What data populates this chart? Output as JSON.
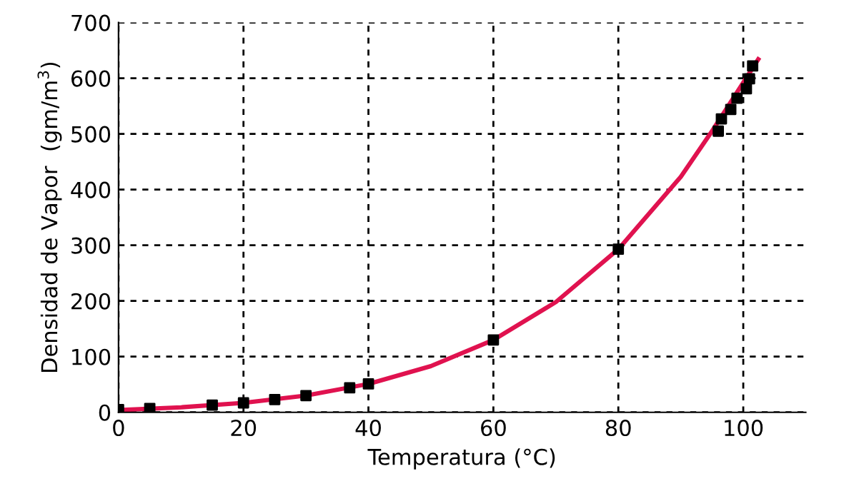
{
  "chart_data": {
    "type": "scatter",
    "xlabel": "Temperatura (°C)",
    "ylabel": "Densidad de Vapor  (gm/m$^{3}$)",
    "xlim": [
      0,
      110
    ],
    "ylim": [
      0,
      700
    ],
    "xticks": [
      0,
      20,
      40,
      60,
      80,
      100
    ],
    "yticks": [
      0,
      100,
      200,
      300,
      400,
      500,
      600,
      700
    ],
    "grid": true,
    "series": [
      {
        "type": "line",
        "color": "#e0124f",
        "line_style": "solid",
        "x": [
          0,
          10,
          20,
          30,
          40,
          50,
          60,
          70,
          80,
          90,
          95,
          102.4
        ],
        "values": [
          4,
          9,
          17,
          30,
          51,
          83,
          130,
          198,
          293,
          423,
          505,
          634
        ]
      },
      {
        "marker": "square",
        "color": "#000000",
        "x": [
          0,
          5,
          15,
          20,
          25,
          30,
          37,
          40,
          60,
          80,
          96,
          96.5,
          98,
          99,
          100.5,
          101,
          101.5
        ],
        "values": [
          5,
          7,
          13,
          17,
          23,
          30,
          44,
          51,
          130,
          293,
          505,
          527,
          544,
          564,
          581,
          599,
          622
        ]
      }
    ]
  }
}
